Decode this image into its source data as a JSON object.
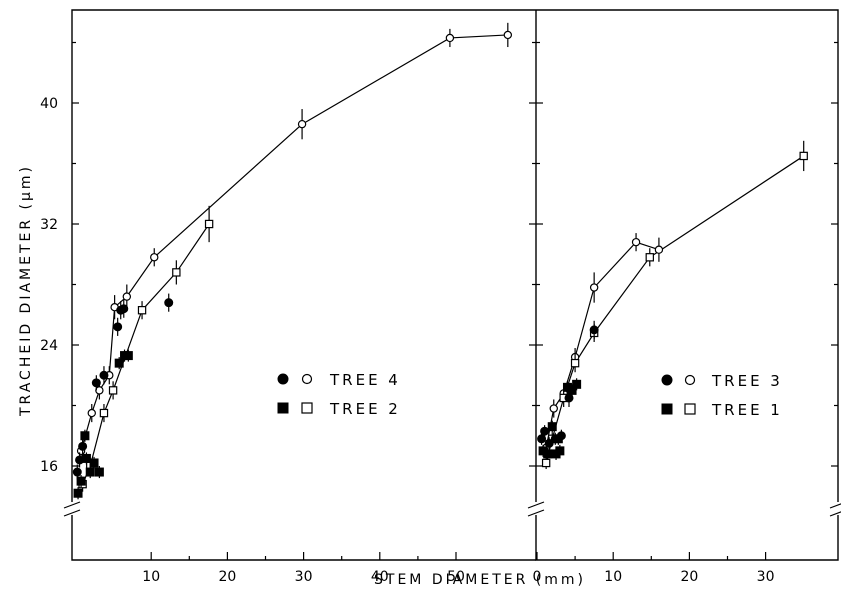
{
  "chart_data": [
    {
      "type": "scatter",
      "panel": "left",
      "ylabel": "TRACHEID DIAMETER (µm)",
      "xlabel": "STEM DIAMETER (mm)",
      "xlim": [
        -10,
        60
      ],
      "ylim": [
        12,
        46
      ],
      "y_axis_break": true,
      "x_ticks": [
        "10",
        "20",
        "30",
        "40",
        "50"
      ],
      "x_tick_values": [
        10,
        20,
        30,
        40,
        50
      ],
      "y_ticks": [
        "16",
        "24",
        "32",
        "40"
      ],
      "y_tick_values": [
        16,
        24,
        32,
        40
      ],
      "legend": [
        {
          "markers": "● ○",
          "label": "TREE 4"
        },
        {
          "markers": "■ □",
          "label": "TREE 2"
        }
      ],
      "legend_position": "lower-right",
      "series": [
        {
          "tree": "TREE 4",
          "marker": "open-circle",
          "connected": true,
          "x": [
            0.8,
            2.2,
            3.2,
            4.5,
            5.2,
            6.8,
            10.4,
            29.8,
            49.2,
            56.8
          ],
          "y": [
            17.0,
            19.5,
            21.0,
            22.0,
            26.5,
            27.2,
            29.8,
            38.6,
            44.3,
            44.5
          ],
          "err": [
            0.5,
            0.6,
            0.6,
            0.6,
            0.8,
            0.8,
            0.6,
            1.0,
            0.6,
            0.8
          ]
        },
        {
          "tree": "TREE 2",
          "marker": "open-square",
          "connected": true,
          "x": [
            1.0,
            2.0,
            3.8,
            5.0,
            8.8,
            13.3,
            17.6
          ],
          "y": [
            14.8,
            16.0,
            19.5,
            21.0,
            26.3,
            28.8,
            32.0
          ],
          "err": [
            0.5,
            0.5,
            0.6,
            0.6,
            0.6,
            0.8,
            1.2
          ]
        },
        {
          "tree": "TREE 4",
          "marker": "filled-circle",
          "connected": false,
          "x": [
            0.3,
            0.6,
            1.0,
            2.8,
            3.8,
            5.6,
            6.0,
            6.4,
            12.3
          ],
          "y": [
            15.6,
            16.4,
            17.3,
            21.5,
            22.0,
            25.2,
            26.3,
            26.4,
            26.8
          ],
          "err": [
            0.5,
            0.5,
            0.5,
            0.5,
            0.6,
            0.6,
            0.6,
            0.6,
            0.6
          ]
        },
        {
          "tree": "TREE 2",
          "marker": "filled-square",
          "connected": false,
          "x": [
            0.4,
            0.8,
            1.5,
            2.0,
            2.5,
            3.2,
            5.8,
            6.5,
            7.0,
            1.3
          ],
          "y": [
            14.2,
            15.0,
            16.5,
            15.6,
            16.2,
            15.6,
            22.8,
            23.3,
            23.3,
            18.0
          ],
          "err": [
            0.4,
            0.4,
            0.4,
            0.4,
            0.4,
            0.4,
            0.4,
            0.4,
            0.4,
            0.4
          ]
        }
      ]
    },
    {
      "type": "scatter",
      "panel": "right",
      "xlim": [
        0,
        40
      ],
      "ylim": [
        12,
        46
      ],
      "y_axis_break": true,
      "x_ticks": [
        "0",
        "10",
        "20",
        "30"
      ],
      "x_tick_values": [
        0,
        10,
        20,
        30
      ],
      "legend": [
        {
          "markers": "● ○",
          "label": "TREE 3"
        },
        {
          "markers": "■ □",
          "label": "TREE 1"
        }
      ],
      "legend_position": "lower-right",
      "series": [
        {
          "tree": "TREE 3",
          "marker": "open-circle",
          "connected": true,
          "x": [
            1.2,
            2.2,
            3.5,
            5.0,
            7.5,
            13.0,
            16.0
          ],
          "y": [
            17.2,
            19.8,
            20.8,
            23.2,
            27.8,
            30.8,
            30.3
          ],
          "err": [
            0.5,
            0.6,
            0.6,
            0.6,
            1.0,
            0.6,
            0.8
          ]
        },
        {
          "tree": "TREE 1",
          "marker": "open-square",
          "connected": true,
          "x": [
            1.2,
            2.0,
            3.5,
            5.0,
            7.5,
            14.8,
            35.0
          ],
          "y": [
            16.2,
            17.8,
            20.5,
            22.8,
            24.8,
            29.8,
            36.5
          ],
          "err": [
            0.4,
            0.4,
            0.6,
            0.6,
            0.6,
            0.6,
            1.0
          ]
        },
        {
          "tree": "TREE 3",
          "marker": "filled-circle",
          "connected": false,
          "x": [
            0.6,
            1.0,
            1.6,
            2.4,
            3.2,
            4.2,
            7.5
          ],
          "y": [
            17.8,
            18.3,
            17.5,
            17.8,
            18.0,
            20.5,
            25.0
          ],
          "err": [
            0.4,
            0.4,
            0.4,
            0.4,
            0.4,
            0.6,
            0.6
          ]
        },
        {
          "tree": "TREE 1",
          "marker": "filled-square",
          "connected": false,
          "x": [
            0.8,
            1.4,
            2.0,
            2.5,
            3.0,
            4.0,
            4.6,
            5.2,
            2.8
          ],
          "y": [
            17.0,
            16.8,
            18.6,
            16.8,
            17.0,
            21.2,
            21.0,
            21.4,
            17.8
          ],
          "err": [
            0.4,
            0.4,
            0.4,
            0.4,
            0.4,
            0.4,
            0.4,
            0.4,
            0.4
          ]
        }
      ]
    }
  ]
}
